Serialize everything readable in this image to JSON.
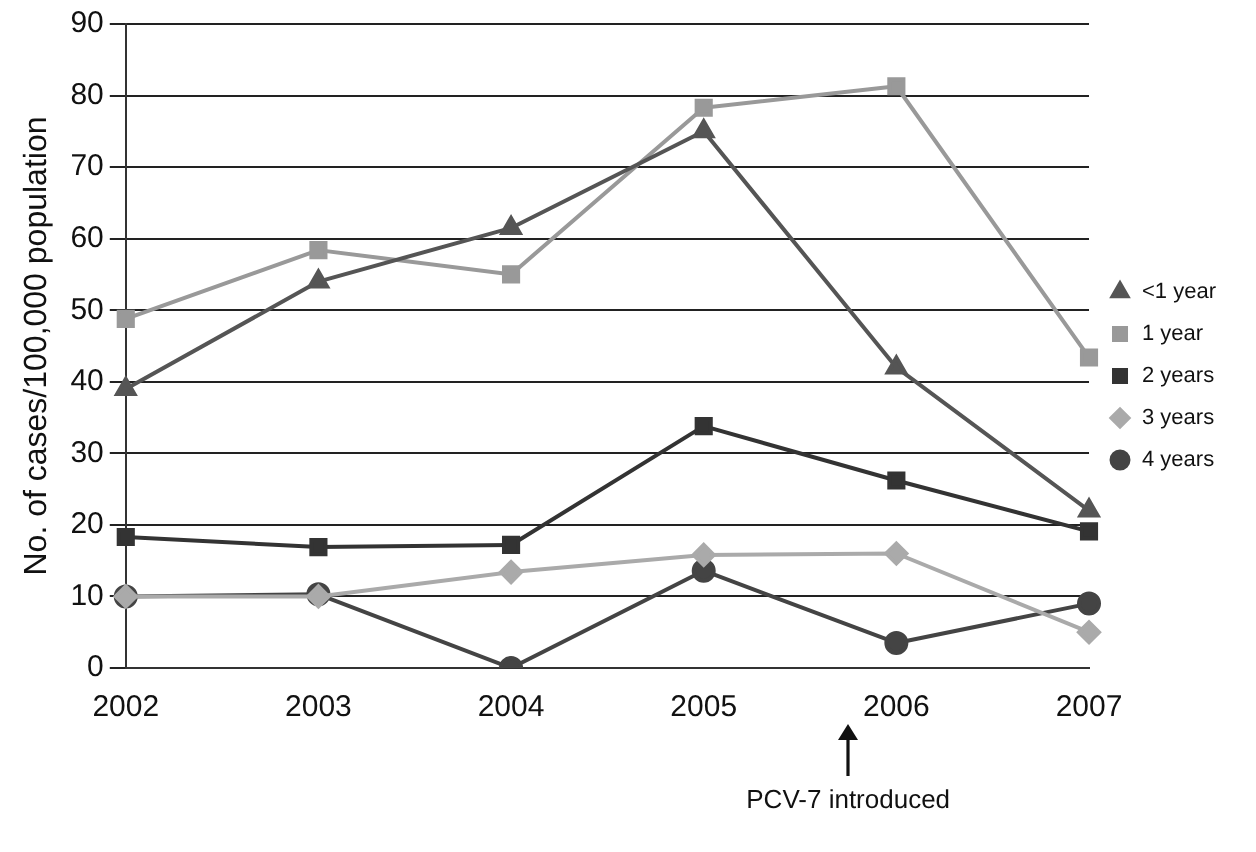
{
  "chart_data": {
    "type": "line",
    "ylabel": "No. of cases/100,000 population",
    "categories": [
      "2002",
      "2003",
      "2004",
      "2005",
      "2006",
      "2007"
    ],
    "series": [
      {
        "name": "<1 year",
        "color": "#555555",
        "marker": "triangle",
        "values": [
          39,
          54,
          61.5,
          75,
          42,
          22
        ]
      },
      {
        "name": "1 year",
        "color": "#999999",
        "marker": "square",
        "values": [
          48.8,
          58.4,
          55,
          78.3,
          81.3,
          43.4
        ]
      },
      {
        "name": "2 years",
        "color": "#333333",
        "marker": "square",
        "values": [
          18.3,
          16.9,
          17.2,
          33.8,
          26.2,
          19.1
        ]
      },
      {
        "name": "3 years",
        "color": "#aaaaaa",
        "marker": "diamond",
        "values": [
          10,
          10,
          13.4,
          15.8,
          16,
          5
        ]
      },
      {
        "name": "4 years",
        "color": "#444444",
        "marker": "circle",
        "values": [
          10,
          10.3,
          0,
          13.6,
          3.5,
          9
        ]
      }
    ],
    "ylim": [
      0,
      90
    ],
    "yticks": [
      0,
      10,
      20,
      30,
      40,
      50,
      60,
      70,
      80,
      90
    ],
    "grid": "y",
    "legend": "right",
    "line_style": "solid",
    "annotations": [
      "PCV-7 introduced"
    ]
  }
}
